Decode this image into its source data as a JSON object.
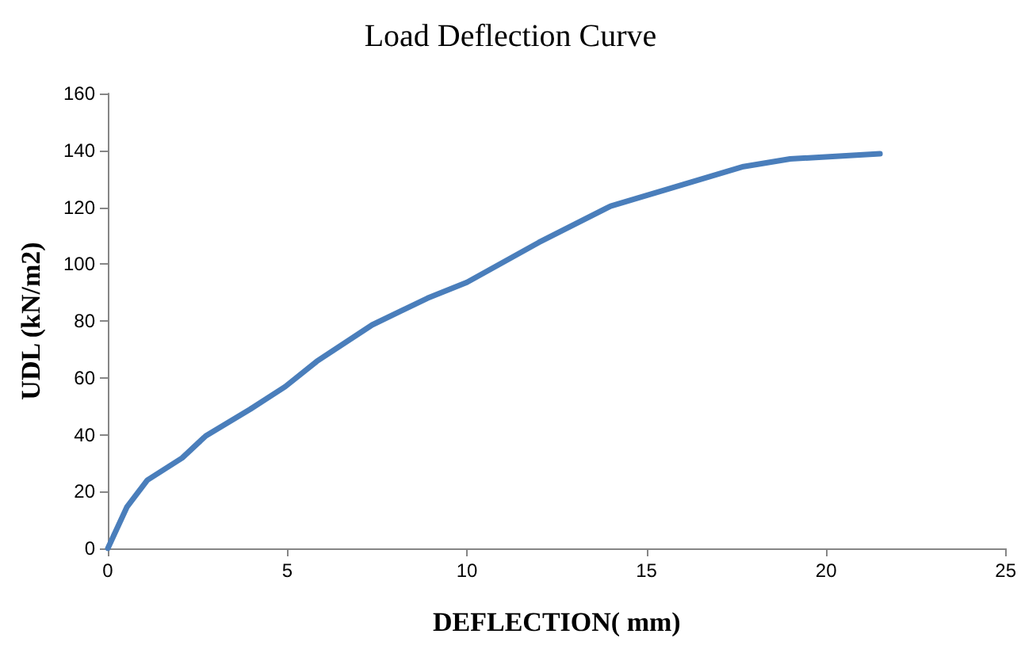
{
  "chart_data": {
    "type": "line",
    "title": "Load Deflection Curve",
    "xlabel": "DEFLECTION( mm)",
    "ylabel": "UDL (kN/m2)",
    "x": [
      0,
      0.53,
      1.1,
      2.07,
      2.73,
      3.97,
      4.94,
      5.82,
      7.36,
      8.9,
      10,
      12,
      14,
      15.5,
      17.7,
      19,
      21.5
    ],
    "series": [
      {
        "color": "#4a7ebb",
        "values": [
          0,
          14.5,
          24,
          31.8,
          39.6,
          49,
          56.9,
          65.8,
          78.6,
          88,
          93.6,
          107.6,
          120.4,
          126,
          134.3,
          137,
          138.8
        ]
      }
    ],
    "xlim": [
      0,
      25
    ],
    "xticks": [
      0,
      5,
      10,
      15,
      20,
      25
    ],
    "ylim": [
      0,
      160
    ],
    "yticks": [
      0,
      20,
      40,
      60,
      80,
      100,
      120,
      140,
      160
    ],
    "grid": false,
    "marker": "none",
    "line_style": "solid"
  }
}
